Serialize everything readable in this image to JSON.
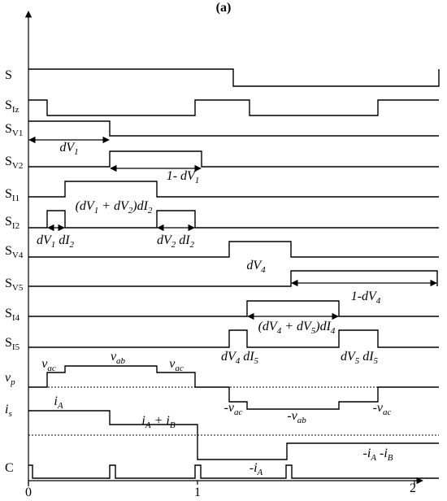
{
  "title": "(a)",
  "signals": [
    {
      "label": [
        "S"
      ]
    },
    {
      "label": [
        "S",
        "Iz"
      ]
    },
    {
      "label": [
        "S",
        "V1"
      ]
    },
    {
      "label": [
        "S",
        "V2"
      ]
    },
    {
      "label": [
        "S",
        "I1"
      ]
    },
    {
      "label": [
        "S",
        "I2"
      ]
    },
    {
      "label": [
        "S",
        "V4"
      ]
    },
    {
      "label": [
        "S",
        "V5"
      ]
    },
    {
      "label": [
        "S",
        "I4"
      ]
    },
    {
      "label": [
        "S",
        "I5"
      ]
    },
    {
      "label": [
        "v",
        "p"
      ]
    },
    {
      "label": [
        "i",
        "s"
      ]
    },
    {
      "label": [
        "C"
      ]
    }
  ],
  "annotations": [
    {
      "text": [
        "dV",
        "1"
      ]
    },
    {
      "text": [
        "1- dV",
        "1"
      ]
    },
    {
      "text": [
        "(dV",
        "1",
        " + dV",
        "2",
        ")dI",
        "2"
      ]
    },
    {
      "text": [
        "dV",
        "1",
        " dI",
        "2"
      ]
    },
    {
      "text": [
        "dV",
        "2",
        " dI",
        "2"
      ]
    },
    {
      "text": [
        "dV",
        "4"
      ]
    },
    {
      "text": [
        "1-dV",
        "4"
      ]
    },
    {
      "text": [
        "(dV",
        "4",
        " + dV",
        "5",
        ")dI",
        "4"
      ]
    },
    {
      "text": [
        "dV",
        "4",
        " dI",
        "5"
      ]
    },
    {
      "text": [
        "dV",
        "5",
        " dI",
        "5"
      ]
    },
    {
      "text": [
        "v",
        "ac"
      ]
    },
    {
      "text": [
        "v",
        "ab"
      ]
    },
    {
      "text": [
        "v",
        "ac"
      ]
    },
    {
      "text": [
        "-v",
        "ac"
      ]
    },
    {
      "text": [
        "-v",
        "ab"
      ]
    },
    {
      "text": [
        "-v",
        "ac"
      ]
    },
    {
      "text": [
        "i",
        "A"
      ]
    },
    {
      "text": [
        "i",
        "A",
        " + i",
        "B"
      ]
    },
    {
      "text": [
        "-i",
        "A"
      ]
    },
    {
      "text": [
        "-i",
        "A",
        " -i",
        "B"
      ]
    }
  ],
  "x_axis_labels": [
    "0",
    "1",
    "2"
  ]
}
